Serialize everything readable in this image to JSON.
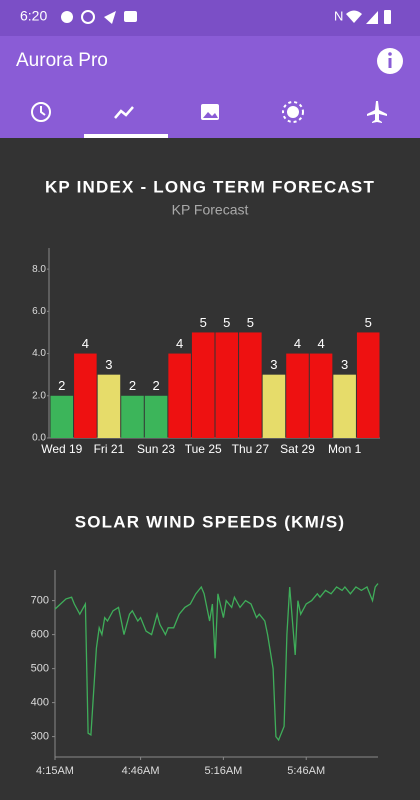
{
  "status_bar": {
    "time": "6:20"
  },
  "app_bar": {
    "title": "Aurora Pro"
  },
  "chart_data": [
    {
      "type": "bar",
      "title": "KP INDEX - LONG TERM FORECAST",
      "subtitle": "KP Forecast",
      "categories": [
        "Wed 19",
        null,
        "Fri 21",
        null,
        "Sun 23",
        null,
        "Tue 25",
        null,
        "Thu 27",
        null,
        "Sat 29",
        null,
        "Mon 1",
        null
      ],
      "values": [
        2,
        4,
        3,
        2,
        2,
        4,
        5,
        5,
        5,
        3,
        4,
        4,
        3,
        5
      ],
      "colors": [
        "#3cb55a",
        "#ee1111",
        "#e6dc6a",
        "#3cb55a",
        "#3cb55a",
        "#ee1111",
        "#ee1111",
        "#ee1111",
        "#ee1111",
        "#e6dc6a",
        "#ee1111",
        "#ee1111",
        "#e6dc6a",
        "#ee1111"
      ],
      "ylim": [
        0,
        9
      ],
      "yticks": [
        {
          "value": 0,
          "label": "0.0"
        },
        {
          "value": 2,
          "label": "2.0"
        },
        {
          "value": 4,
          "label": "4.0"
        },
        {
          "value": 6,
          "label": "6.0"
        },
        {
          "value": 8,
          "label": "8.0"
        }
      ]
    },
    {
      "type": "line",
      "title": "SOLAR WIND SPEEDS (KM/S)",
      "color": "#3fae5a",
      "x": [
        "4:15AM",
        "4:17AM",
        "4:19AM",
        "4:21AM",
        "4:22AM",
        "4:24AM",
        "4:26AM",
        "4:27AM",
        "4:28AM",
        "4:30AM",
        "4:31AM",
        "4:32AM",
        "4:33AM",
        "4:34AM",
        "4:36AM",
        "4:38AM",
        "4:39AM",
        "4:40AM",
        "4:42AM",
        "4:43AM",
        "4:45AM",
        "4:46AM",
        "4:48AM",
        "4:50AM",
        "4:52AM",
        "4:53AM",
        "4:55AM",
        "4:56AM",
        "4:58AM",
        "5:00AM",
        "5:02AM",
        "5:04AM",
        "5:06AM",
        "5:08AM",
        "5:09AM",
        "5:11AM",
        "5:12AM",
        "5:13AM",
        "5:14AM",
        "5:16AM",
        "5:17AM",
        "5:19AM",
        "5:20AM",
        "5:22AM",
        "5:24AM",
        "5:26AM",
        "5:28AM",
        "5:29AM",
        "5:31AM",
        "5:32AM",
        "5:34AM",
        "5:35AM",
        "5:36AM",
        "5:38AM",
        "5:39AM",
        "5:40AM",
        "5:42AM",
        "5:43AM",
        "5:44AM",
        "5:46AM",
        "5:48AM",
        "5:50AM",
        "5:51AM",
        "5:53AM",
        "5:55AM",
        "5:57AM",
        "5:59AM",
        "6:00AM",
        "6:02AM",
        "6:04AM",
        "6:06AM",
        "6:08AM",
        "6:10AM",
        "6:11AM",
        "6:12AM"
      ],
      "values": [
        675,
        690,
        705,
        710,
        690,
        660,
        690,
        310,
        305,
        560,
        620,
        600,
        650,
        640,
        670,
        680,
        640,
        600,
        660,
        670,
        640,
        650,
        610,
        600,
        660,
        630,
        600,
        620,
        620,
        660,
        680,
        690,
        720,
        740,
        720,
        640,
        690,
        530,
        720,
        650,
        700,
        680,
        710,
        680,
        700,
        690,
        650,
        660,
        640,
        600,
        500,
        300,
        290,
        330,
        600,
        740,
        540,
        700,
        660,
        690,
        700,
        720,
        710,
        730,
        720,
        740,
        730,
        740,
        720,
        740,
        730,
        740,
        700,
        740,
        750
      ],
      "xlim": [
        "4:15AM",
        "6:12AM"
      ],
      "xticks": [
        "4:15AM",
        "4:46AM",
        "5:16AM",
        "5:46AM"
      ],
      "ylim": [
        240,
        790
      ],
      "yticks": [
        300,
        400,
        500,
        600,
        700
      ]
    }
  ]
}
